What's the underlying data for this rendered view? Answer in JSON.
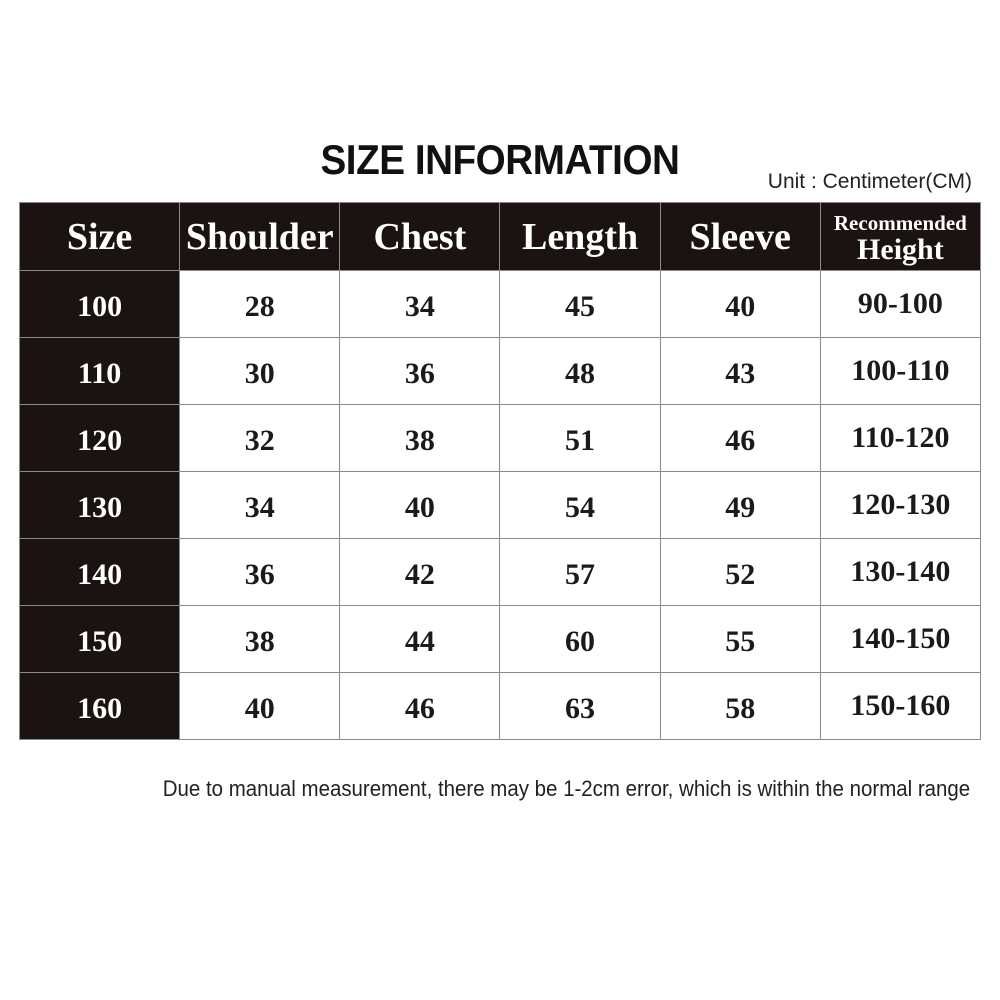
{
  "title": "SIZE INFORMATION",
  "unit": "Unit : Centimeter(CM)",
  "colors": {
    "header_bg": "#1a1311",
    "header_text": "#ffffff",
    "border": "#8a8a8a"
  },
  "table": {
    "headers": [
      "Size",
      "Shoulder",
      "Chest",
      "Length",
      "Sleeve"
    ],
    "height_header": {
      "line1": "Recommended",
      "line2": "Height"
    },
    "rows": [
      [
        "100",
        "28",
        "34",
        "45",
        "40",
        "90-100"
      ],
      [
        "110",
        "30",
        "36",
        "48",
        "43",
        "100-110"
      ],
      [
        "120",
        "32",
        "38",
        "51",
        "46",
        "110-120"
      ],
      [
        "130",
        "34",
        "40",
        "54",
        "49",
        "120-130"
      ],
      [
        "140",
        "36",
        "42",
        "57",
        "52",
        "130-140"
      ],
      [
        "150",
        "38",
        "44",
        "60",
        "55",
        "140-150"
      ],
      [
        "160",
        "40",
        "46",
        "63",
        "58",
        "150-160"
      ]
    ]
  },
  "note": "Due to manual measurement, there may be 1-2cm error, which is within the normal range"
}
